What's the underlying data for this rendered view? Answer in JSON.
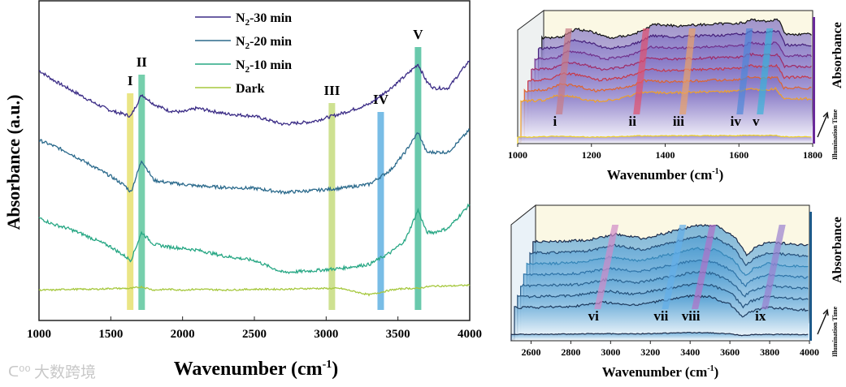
{
  "chart_data": [
    {
      "type": "line",
      "panel": "main",
      "xlabel": "Wavenumber (cm-1)",
      "xlabel_main": "Wavenumber (cm",
      "xlabel_sup": "-1",
      "xlabel_end": ")",
      "ylabel": "Absorbance (a.u.)",
      "xlim": [
        1000,
        4000
      ],
      "ylim": [
        0,
        4
      ],
      "xticks": [
        "1000",
        "1500",
        "2000",
        "2500",
        "3000",
        "3500",
        "4000"
      ],
      "legend": {
        "placement": "top-center",
        "entries": [
          {
            "label_main": "N",
            "label_sub": "2",
            "label_rest": "-30 min",
            "color": "#3b2c86"
          },
          {
            "label_main": "N",
            "label_sub": "2",
            "label_rest": "-20 min",
            "color": "#2b6a8c"
          },
          {
            "label_main": "N",
            "label_sub": "2",
            "label_rest": "-10 min",
            "color": "#27a784"
          },
          {
            "label_main": "Dark",
            "label_sub": "",
            "label_rest": "",
            "color": "#a6c83e"
          }
        ]
      },
      "x": [
        1000,
        1100,
        1200,
        1300,
        1400,
        1500,
        1600,
        1640,
        1715,
        1800,
        1900,
        2000,
        2100,
        2300,
        2500,
        2700,
        2900,
        3100,
        3300,
        3450,
        3550,
        3640,
        3700,
        3750,
        3850,
        4000
      ],
      "series": [
        {
          "name": "N2-30 min",
          "color": "#3b2c86",
          "values": [
            3.12,
            3.0,
            2.9,
            2.8,
            2.7,
            2.62,
            2.57,
            2.55,
            2.82,
            2.7,
            2.62,
            2.6,
            2.65,
            2.58,
            2.55,
            2.45,
            2.48,
            2.58,
            2.7,
            2.9,
            3.05,
            3.2,
            2.98,
            2.9,
            2.9,
            3.25
          ]
        },
        {
          "name": "N2-20 min",
          "color": "#2b6a8c",
          "values": [
            2.25,
            2.18,
            2.1,
            2.0,
            1.9,
            1.8,
            1.68,
            1.6,
            2.0,
            1.75,
            1.72,
            1.7,
            1.68,
            1.66,
            1.65,
            1.6,
            1.62,
            1.65,
            1.7,
            1.88,
            2.1,
            2.35,
            2.1,
            2.1,
            2.1,
            2.38
          ]
        },
        {
          "name": "N2-10 min",
          "color": "#27a784",
          "values": [
            1.28,
            1.2,
            1.15,
            1.08,
            1.0,
            0.92,
            0.8,
            0.75,
            1.1,
            0.95,
            0.92,
            0.9,
            0.88,
            0.8,
            0.75,
            0.6,
            0.62,
            0.65,
            0.7,
            0.85,
            1.0,
            1.38,
            1.1,
            1.1,
            1.15,
            1.45
          ]
        },
        {
          "name": "Dark",
          "color": "#a6c83e",
          "values": [
            0.38,
            0.38,
            0.39,
            0.39,
            0.39,
            0.4,
            0.4,
            0.4,
            0.42,
            0.38,
            0.39,
            0.38,
            0.39,
            0.38,
            0.39,
            0.39,
            0.4,
            0.4,
            0.32,
            0.38,
            0.4,
            0.4,
            0.42,
            0.43,
            0.43,
            0.44
          ]
        }
      ],
      "bands": [
        {
          "label": "I",
          "wavenumber": 1635,
          "color": "#e6e070"
        },
        {
          "label": "II",
          "wavenumber": 1715,
          "color": "#5ec79e"
        },
        {
          "label": "III",
          "wavenumber": 3040,
          "color": "#c6dc7e"
        },
        {
          "label": "IV",
          "wavenumber": 3380,
          "color": "#62b2e2"
        },
        {
          "label": "V",
          "wavenumber": 3640,
          "color": "#4fc09e"
        }
      ]
    },
    {
      "type": "line",
      "panel": "inset-top",
      "xlim": [
        1000,
        1800
      ],
      "xticks": [
        "1000",
        "1200",
        "1400",
        "1600",
        "1800"
      ],
      "ylabel": "Absorbance",
      "time_label": "Illumination Time",
      "trace_colors": [
        "#f0d020",
        "#f0a028",
        "#e0642c",
        "#c83848",
        "#a02a66",
        "#70308c",
        "#45207a",
        "#111111"
      ],
      "profile_x": [
        1000,
        1060,
        1100,
        1150,
        1200,
        1260,
        1300,
        1330,
        1400,
        1500,
        1600,
        1620,
        1660,
        1700,
        1720,
        1800
      ],
      "profile_y": [
        0,
        2,
        12,
        8,
        0,
        4,
        10,
        18,
        16,
        18,
        20,
        24,
        22,
        24,
        5,
        5
      ],
      "bands": [
        {
          "label": "i",
          "wavenumber": 1110,
          "color": "#c77a86"
        },
        {
          "label": "ii",
          "wavenumber": 1320,
          "color": "#e0506e"
        },
        {
          "label": "iii",
          "wavenumber": 1445,
          "color": "#e8a068"
        },
        {
          "label": "iv",
          "wavenumber": 1600,
          "color": "#4f88d8"
        },
        {
          "label": "v",
          "wavenumber": 1655,
          "color": "#3ab0d8"
        }
      ]
    },
    {
      "type": "line",
      "panel": "inset-bottom",
      "xlim": [
        2500,
        4000
      ],
      "xticks": [
        "2600",
        "2800",
        "3000",
        "3200",
        "3400",
        "3600",
        "3800",
        "4000"
      ],
      "ylabel": "Absorbance",
      "time_label": "Illumination Time",
      "xlabel_main": "Wavenumber (cm",
      "xlabel_sup": "-1",
      "xlabel_end": ")",
      "trace_colors": [
        "#1a2a48",
        "#1d3a5e",
        "#23507a",
        "#2a6290",
        "#2f74a8",
        "#3586b8",
        "#26507a",
        "#1b2c4c"
      ],
      "profile_x": [
        2500,
        2600,
        2800,
        2950,
        3100,
        3300,
        3400,
        3500,
        3600,
        3660,
        3700,
        3780,
        3900,
        4000
      ],
      "profile_y": [
        0,
        0,
        2,
        10,
        4,
        16,
        22,
        20,
        5,
        -18,
        -8,
        0,
        -3,
        -5
      ],
      "bands": [
        {
          "label": "vi",
          "wavenumber": 2930,
          "color": "#d08ac8"
        },
        {
          "label": "vii",
          "wavenumber": 3270,
          "color": "#62aee8"
        },
        {
          "label": "viii",
          "wavenumber": 3420,
          "color": "#b070c8"
        },
        {
          "label": "ix",
          "wavenumber": 3770,
          "color": "#9a80d0"
        }
      ]
    }
  ],
  "watermark": "大数跨境"
}
